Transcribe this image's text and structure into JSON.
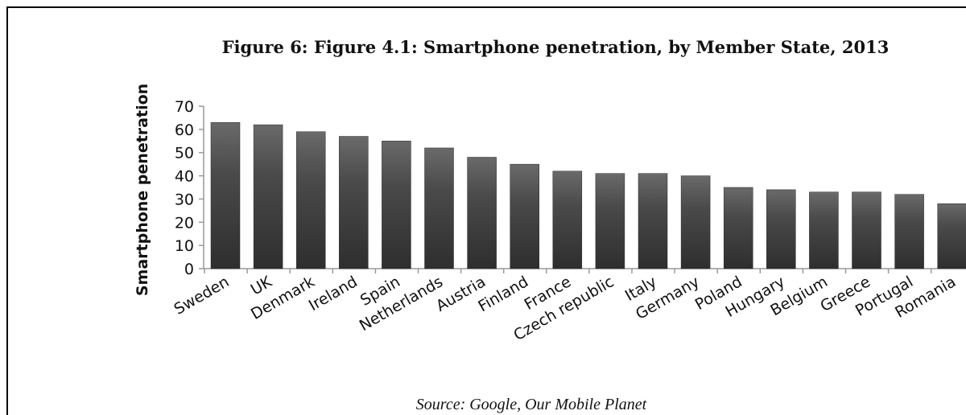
{
  "figure": {
    "title": "Figure 6: Figure 4.1: Smartphone penetration, by Member State, 2013",
    "source": "Source: Google, Our Mobile Planet"
  },
  "chart_data": {
    "type": "bar",
    "title": "Figure 6: Figure 4.1: Smartphone penetration, by Member State, 2013",
    "xlabel": "",
    "ylabel": "Smartphone penetration",
    "ylim": [
      0,
      70
    ],
    "yticks": [
      0,
      10,
      20,
      30,
      40,
      50,
      60,
      70
    ],
    "grid": false,
    "categories": [
      "Sweden",
      "UK",
      "Denmark",
      "Ireland",
      "Spain",
      "Netherlands",
      "Austria",
      "Finland",
      "France",
      "Czech republic",
      "Italy",
      "Germany",
      "Poland",
      "Hungary",
      "Belgium",
      "Greece",
      "Portugal",
      "Romania"
    ],
    "values": [
      63,
      62,
      59,
      57,
      55,
      52,
      48,
      45,
      42,
      41,
      41,
      40,
      35,
      34,
      33,
      33,
      32,
      28
    ],
    "bar_color": "#3d3d3d"
  }
}
